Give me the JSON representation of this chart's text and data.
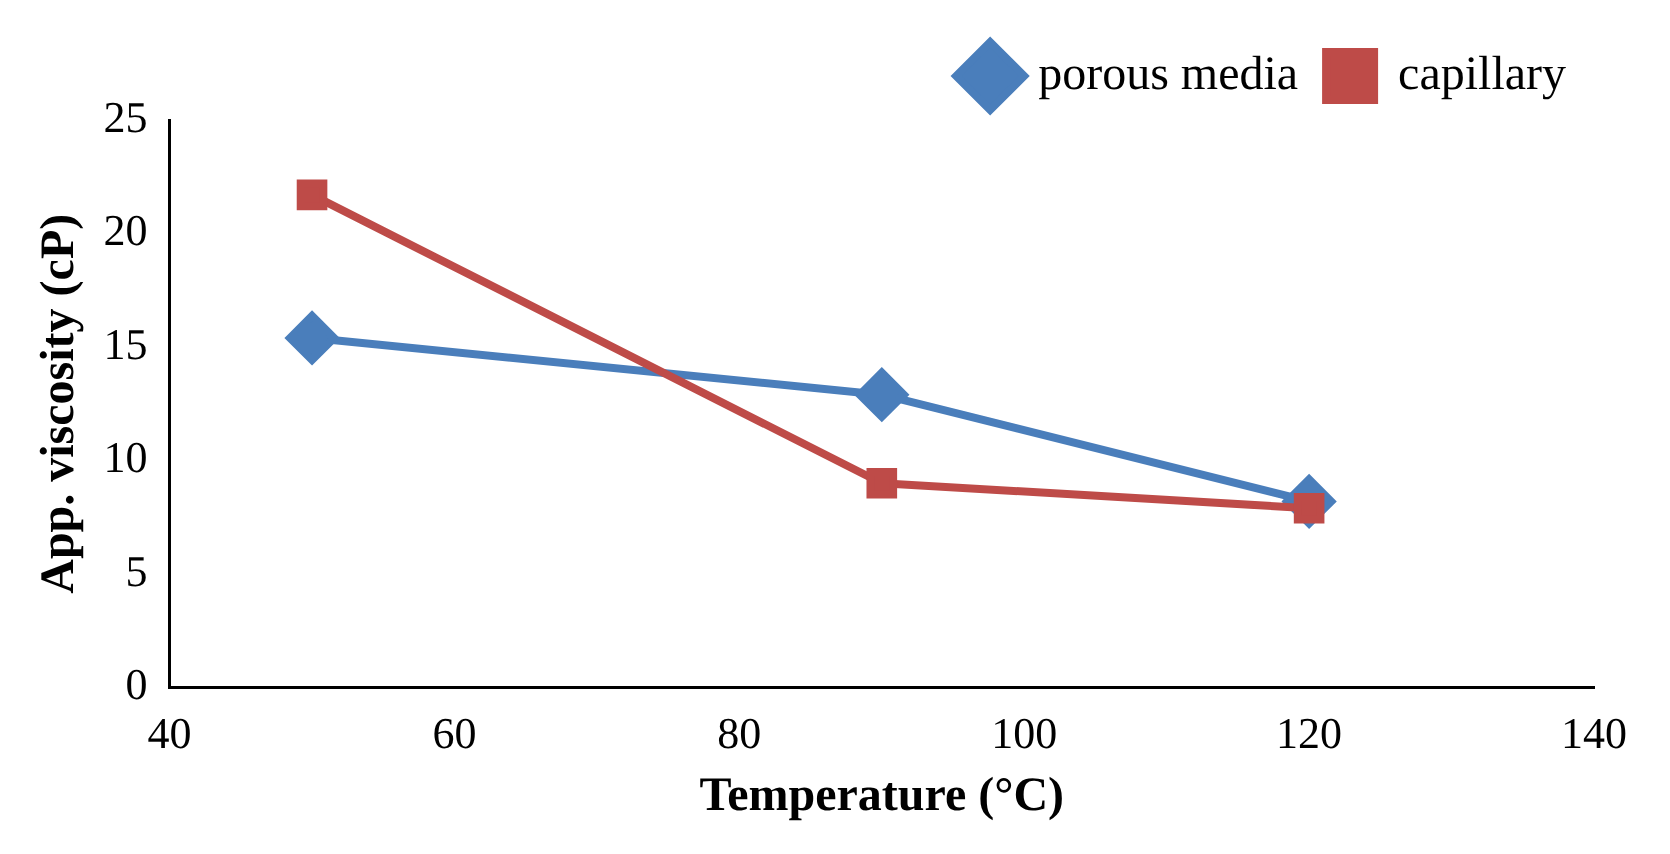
{
  "chart_data": {
    "type": "line",
    "xlabel": "Temperature (°C)",
    "ylabel": "App. viscosity (cP)",
    "x": [
      50,
      90,
      120
    ],
    "series": [
      {
        "name": "porous media",
        "color": "#4a7ebb",
        "values": [
          15.4,
          12.9,
          8.2
        ],
        "marker": "diamond"
      },
      {
        "name": "capillary",
        "color": "#be4b48",
        "values": [
          21.7,
          9.0,
          7.9
        ],
        "marker": "square"
      }
    ],
    "xlim": [
      40,
      140
    ],
    "xticks": [
      40,
      60,
      80,
      100,
      120,
      140
    ],
    "ylim": [
      0,
      25
    ],
    "yticks": [
      0,
      5,
      10,
      15,
      20,
      25
    ],
    "grid": false,
    "legend": "top right",
    "line_style": "solid"
  }
}
